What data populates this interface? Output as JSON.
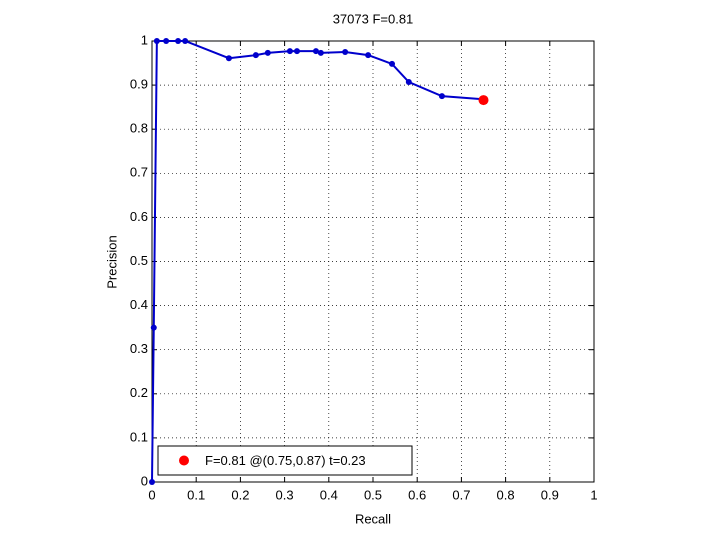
{
  "chart_data": {
    "type": "line",
    "title": "37073 F=0.81",
    "xlabel": "Recall",
    "ylabel": "Precision",
    "xlim": [
      0,
      1
    ],
    "ylim": [
      0,
      1
    ],
    "xticks": [
      0,
      0.1,
      0.2,
      0.3,
      0.4,
      0.5,
      0.6,
      0.7,
      0.8,
      0.9,
      1
    ],
    "yticks": [
      0,
      0.1,
      0.2,
      0.3,
      0.4,
      0.5,
      0.6,
      0.7,
      0.8,
      0.9,
      1
    ],
    "grid": true,
    "legend": "lower left",
    "series": [
      {
        "color": "#0000cc",
        "x": [
          0,
          0.004,
          0.011,
          0.032,
          0.059,
          0.075,
          0.174,
          0.235,
          0.262,
          0.312,
          0.328,
          0.371,
          0.382,
          0.437,
          0.489,
          0.543,
          0.581,
          0.656,
          0.749
        ],
        "values": [
          0,
          0.35,
          1,
          1,
          1,
          1,
          0.961,
          0.968,
          0.973,
          0.977,
          0.977,
          0.977,
          0.973,
          0.975,
          0.968,
          0.948,
          0.907,
          0.875,
          0.868
        ]
      },
      {
        "name": "F=0.81 @(0.75,0.87) t=0.23",
        "color": "#ff0000",
        "x": [
          0.75
        ],
        "values": [
          0.866
        ]
      }
    ]
  }
}
